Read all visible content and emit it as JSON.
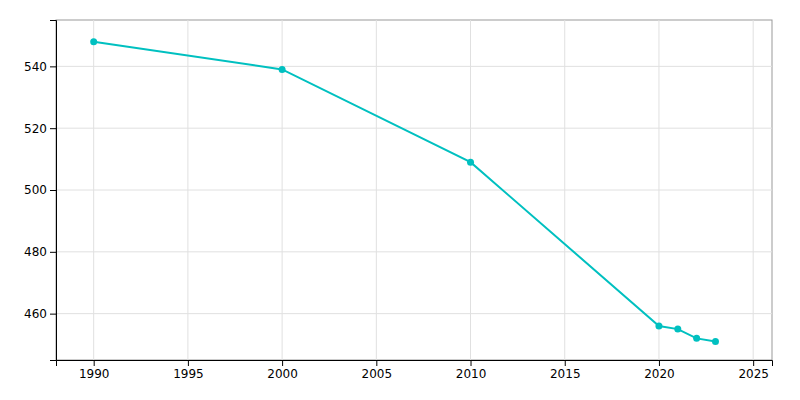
{
  "chart_data": {
    "type": "line",
    "x": [
      1990,
      2000,
      2010,
      2020,
      2021,
      2022,
      2023
    ],
    "values": [
      548,
      539,
      509,
      456,
      455,
      452,
      451
    ],
    "color": "#00C0C0",
    "marker": "circle",
    "xlim": [
      1988,
      2026
    ],
    "ylim": [
      445,
      555
    ],
    "xticks": [
      1990,
      1995,
      2000,
      2005,
      2010,
      2015,
      2020,
      2025
    ],
    "yticks": [
      460,
      480,
      500,
      520,
      540
    ],
    "grid": true
  }
}
